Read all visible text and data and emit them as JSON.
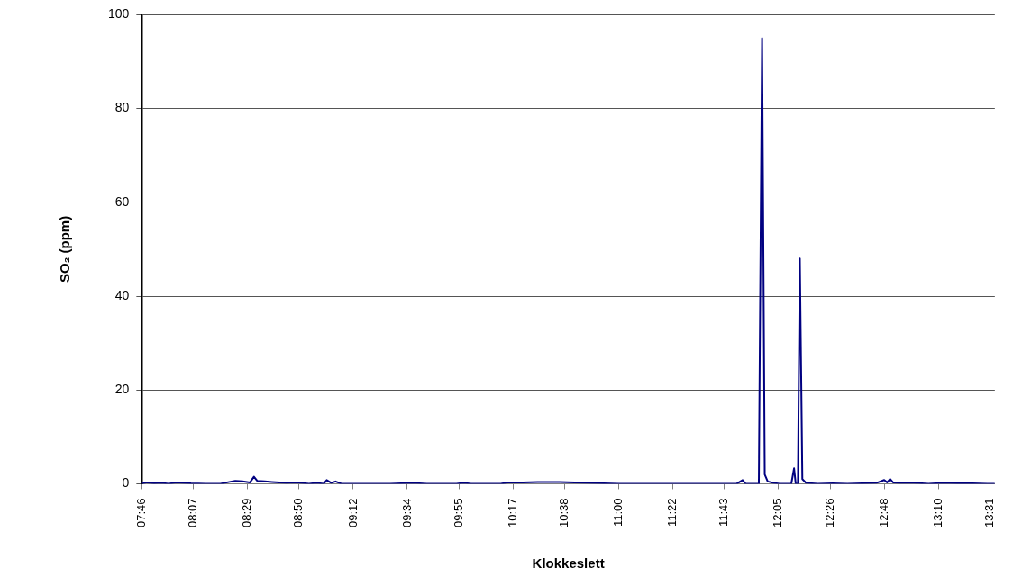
{
  "chart_data": {
    "type": "line",
    "xlabel": "Klokkeslett",
    "ylabel": "SO₂ (ppm)",
    "xlim": [
      7.7667,
      13.55
    ],
    "xticks": [
      {
        "value": 7.7667,
        "label": "07:46"
      },
      {
        "value": 8.1167,
        "label": "08:07"
      },
      {
        "value": 8.4833,
        "label": "08:29"
      },
      {
        "value": 8.8333,
        "label": "08:50"
      },
      {
        "value": 9.2,
        "label": "09:12"
      },
      {
        "value": 9.5667,
        "label": "09:34"
      },
      {
        "value": 9.9167,
        "label": "09:55"
      },
      {
        "value": 10.2833,
        "label": "10:17"
      },
      {
        "value": 10.6333,
        "label": "10:38"
      },
      {
        "value": 11,
        "label": "11:00"
      },
      {
        "value": 11.3667,
        "label": "11:22"
      },
      {
        "value": 11.7167,
        "label": "11:43"
      },
      {
        "value": 12.0833,
        "label": "12:05"
      },
      {
        "value": 12.4333,
        "label": "12:26"
      },
      {
        "value": 12.8,
        "label": "12:48"
      },
      {
        "value": 13.1667,
        "label": "13:10"
      },
      {
        "value": 13.5167,
        "label": "13:31"
      }
    ],
    "ylim": [
      0,
      100
    ],
    "yticks": [
      0,
      20,
      40,
      60,
      80,
      100
    ],
    "grid": "y",
    "legend": false,
    "marker": "none",
    "line_style": "solid",
    "series": [
      {
        "color": "#000080",
        "x": [
          7.767,
          7.8,
          7.85,
          7.9,
          7.95,
          8.0,
          8.05,
          8.1,
          8.2,
          8.3,
          8.36,
          8.4,
          8.45,
          8.5,
          8.527,
          8.55,
          8.6,
          8.65,
          8.7,
          8.75,
          8.8,
          8.85,
          8.9,
          8.95,
          9.0,
          9.02,
          9.05,
          9.08,
          9.12,
          9.15,
          9.3,
          9.45,
          9.6,
          9.7,
          9.9,
          9.95,
          10.0,
          10.2,
          10.25,
          10.35,
          10.45,
          10.6,
          10.7,
          10.8,
          10.9,
          11.0,
          11.5,
          11.8,
          11.84,
          11.86,
          11.95,
          11.972,
          11.99,
          12.01,
          12.05,
          12.09,
          12.12,
          12.17,
          12.189,
          12.2,
          12.215,
          12.228,
          12.245,
          12.27,
          12.35,
          12.45,
          12.55,
          12.65,
          12.75,
          12.8,
          12.82,
          12.84,
          12.86,
          12.9,
          13.0,
          13.1,
          13.2,
          13.3,
          13.4,
          13.5,
          13.55
        ],
        "values": [
          0,
          0.3,
          0.1,
          0.2,
          0,
          0.3,
          0.2,
          0.1,
          0,
          0,
          0.4,
          0.6,
          0.5,
          0.3,
          1.5,
          0.6,
          0.5,
          0.4,
          0.3,
          0.2,
          0.3,
          0.2,
          0,
          0.2,
          0,
          0.8,
          0.2,
          0.5,
          0,
          0,
          0,
          0,
          0.2,
          0,
          0,
          0.2,
          0,
          0,
          0.3,
          0.3,
          0.4,
          0.4,
          0.3,
          0.2,
          0.1,
          0,
          0,
          0,
          0.8,
          0,
          0,
          95,
          2,
          0.5,
          0.2,
          0,
          0,
          0,
          3.3,
          0,
          0,
          48,
          1,
          0.2,
          0,
          0.1,
          0,
          0.1,
          0.2,
          0.8,
          0.3,
          1.0,
          0.3,
          0.2,
          0.2,
          0,
          0.2,
          0.1,
          0.1,
          0,
          0
        ]
      }
    ]
  }
}
